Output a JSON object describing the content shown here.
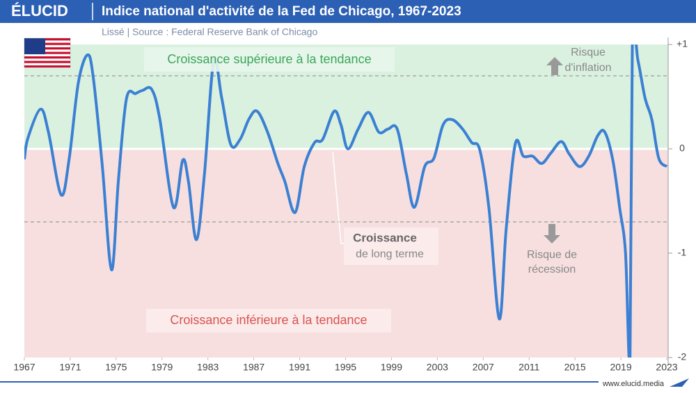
{
  "brand": "ÉLUCID",
  "footer": "www.elucid.media",
  "chart_data": {
    "type": "line",
    "title": "Indice national d'activité de la Fed de Chicago, 1967-2023",
    "subtitle": "Lissé | Source : Federal Reserve Bank of Chicago",
    "annotations": {
      "above_trend": "Croissance supérieure à la tendance",
      "below_trend": "Croissance inférieure à la tendance",
      "inflation_risk": [
        "Risque",
        "d'inflation"
      ],
      "recession_risk": [
        "Risque de",
        "récession"
      ],
      "long_term": [
        "Croissance",
        "de long terme"
      ]
    },
    "reference_lines": [
      0.7,
      -0.7
    ],
    "xlim": [
      1967,
      2023
    ],
    "xticks": [
      1967,
      1971,
      1975,
      1979,
      1983,
      1987,
      1991,
      1995,
      1999,
      2003,
      2007,
      2011,
      2015,
      2019,
      2023
    ],
    "ylim": [
      -2,
      1
    ],
    "yticks": [
      {
        "value": 1,
        "label": "+1"
      },
      0,
      -1,
      -2
    ],
    "series": [
      {
        "name": "Indice",
        "color": "#3b80d2",
        "x": [
          1967.0,
          1967.3,
          1968.4,
          1969.1,
          1970.2,
          1970.9,
          1971.7,
          1972.5,
          1973.0,
          1973.8,
          1974.6,
          1975.2,
          1975.9,
          1976.7,
          1977.3,
          1978.1,
          1978.8,
          1980.0,
          1980.8,
          1981.3,
          1982.0,
          1982.7,
          1983.5,
          1984.2,
          1985.0,
          1985.8,
          1986.6,
          1987.3,
          1988.2,
          1989.1,
          1989.7,
          1990.6,
          1991.4,
          1992.3,
          1993.0,
          1994.0,
          1994.6,
          1995.2,
          1996.1,
          1997.0,
          1997.9,
          1998.7,
          1999.5,
          2000.3,
          2001.0,
          2001.9,
          2002.7,
          2003.5,
          2004.3,
          2005.2,
          2006.0,
          2006.7,
          2007.5,
          2008.4,
          2009.0,
          2009.8,
          2010.5,
          2011.3,
          2012.1,
          2012.9,
          2013.8,
          2014.5,
          2015.4,
          2016.2,
          2017.0,
          2017.6,
          2018.3,
          2018.9,
          2019.4,
          2019.8,
          2020.0,
          2020.5,
          2021.1,
          2021.7,
          2022.3,
          2023.0
        ],
        "values": [
          -0.1,
          0.1,
          0.38,
          0.16,
          -0.44,
          -0.1,
          0.63,
          0.9,
          0.69,
          -0.17,
          -1.16,
          -0.3,
          0.48,
          0.53,
          0.56,
          0.57,
          0.29,
          -0.56,
          -0.11,
          -0.31,
          -0.87,
          -0.24,
          0.84,
          0.49,
          0.04,
          0.09,
          0.29,
          0.36,
          0.16,
          -0.14,
          -0.31,
          -0.61,
          -0.17,
          0.06,
          0.09,
          0.36,
          0.23,
          0,
          0.19,
          0.35,
          0.16,
          0.19,
          0.19,
          -0.24,
          -0.56,
          -0.17,
          -0.09,
          0.23,
          0.28,
          0.19,
          0.06,
          -0.01,
          -0.57,
          -1.63,
          -0.77,
          0.05,
          -0.07,
          -0.07,
          -0.14,
          -0.04,
          0.07,
          -0.05,
          -0.17,
          -0.07,
          0.13,
          0.16,
          -0.11,
          -0.57,
          -0.99,
          -2.0,
          1.0,
          0.84,
          0.49,
          0.28,
          -0.09,
          -0.17
        ]
      }
    ]
  }
}
